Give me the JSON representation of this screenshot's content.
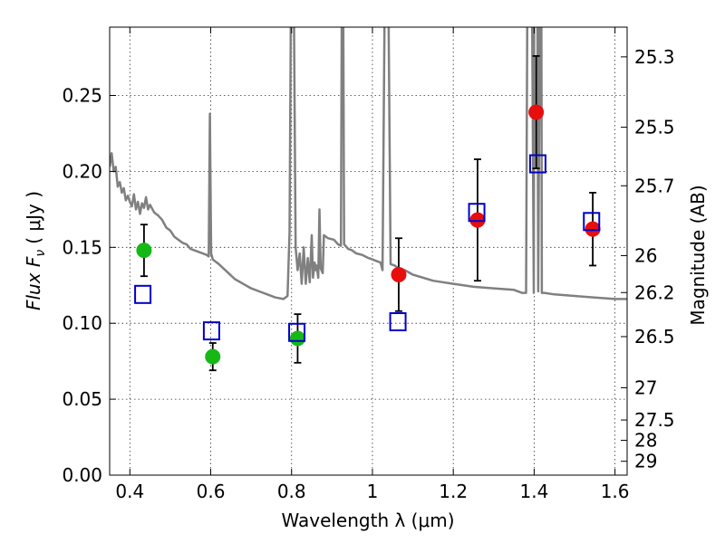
{
  "chart_data": {
    "type": "scatter",
    "xlabel": "Wavelength  λ (μm)",
    "ylabel": "Flux  F",
    "ylabel_sub": "ν",
    "ylabel_unit": "( μJy )",
    "y2label": "Magnitude (AB)",
    "xlim": [
      0.35,
      1.63
    ],
    "ylim": [
      0.0,
      0.295
    ],
    "grid": true,
    "x_ticks": [
      {
        "value": 0.4,
        "label": "0.4"
      },
      {
        "value": 0.6,
        "label": "0.6"
      },
      {
        "value": 0.8,
        "label": "0.8"
      },
      {
        "value": 1.0,
        "label": "1"
      },
      {
        "value": 1.2,
        "label": "1.2"
      },
      {
        "value": 1.4,
        "label": "1.4"
      },
      {
        "value": 1.6,
        "label": "1.6"
      }
    ],
    "y_ticks": [
      {
        "value": 0.0,
        "label": "0.00"
      },
      {
        "value": 0.05,
        "label": "0.05"
      },
      {
        "value": 0.1,
        "label": "0.10"
      },
      {
        "value": 0.15,
        "label": "0.15"
      },
      {
        "value": 0.2,
        "label": "0.20"
      },
      {
        "value": 0.25,
        "label": "0.25"
      }
    ],
    "y2_ticks": [
      {
        "mag": 25.3,
        "label": "25.3"
      },
      {
        "mag": 25.5,
        "label": "25.5"
      },
      {
        "mag": 25.7,
        "label": "25.7"
      },
      {
        "mag": 26.0,
        "label": "26"
      },
      {
        "mag": 26.2,
        "label": "26.2"
      },
      {
        "mag": 26.5,
        "label": "26.5"
      },
      {
        "mag": 27.0,
        "label": "27"
      },
      {
        "mag": 27.5,
        "label": "27.5"
      },
      {
        "mag": 28.0,
        "label": "28"
      },
      {
        "mag": 29.0,
        "label": "29"
      }
    ],
    "colors": {
      "model": "#808080",
      "green": "#16b816",
      "red": "#e80e0e",
      "square": "#0000cc",
      "errorbar": "#000000"
    },
    "series": [
      {
        "name": "model-spectrum",
        "type": "line",
        "points": [
          [
            0.35,
            0.203
          ],
          [
            0.355,
            0.212
          ],
          [
            0.36,
            0.2
          ],
          [
            0.365,
            0.203
          ],
          [
            0.37,
            0.19
          ],
          [
            0.375,
            0.193
          ],
          [
            0.38,
            0.186
          ],
          [
            0.385,
            0.189
          ],
          [
            0.39,
            0.181
          ],
          [
            0.395,
            0.184
          ],
          [
            0.4,
            0.18
          ],
          [
            0.405,
            0.177
          ],
          [
            0.41,
            0.185
          ],
          [
            0.415,
            0.175
          ],
          [
            0.42,
            0.18
          ],
          [
            0.425,
            0.172
          ],
          [
            0.43,
            0.179
          ],
          [
            0.435,
            0.176
          ],
          [
            0.44,
            0.183
          ],
          [
            0.445,
            0.175
          ],
          [
            0.45,
            0.178
          ],
          [
            0.46,
            0.173
          ],
          [
            0.47,
            0.171
          ],
          [
            0.48,
            0.168
          ],
          [
            0.49,
            0.163
          ],
          [
            0.5,
            0.161
          ],
          [
            0.51,
            0.157
          ],
          [
            0.52,
            0.155
          ],
          [
            0.53,
            0.153
          ],
          [
            0.54,
            0.152
          ],
          [
            0.55,
            0.149
          ],
          [
            0.56,
            0.148
          ],
          [
            0.57,
            0.147
          ],
          [
            0.58,
            0.146
          ],
          [
            0.59,
            0.145
          ],
          [
            0.595,
            0.144
          ],
          [
            0.598,
            0.238
          ],
          [
            0.601,
            0.146
          ],
          [
            0.605,
            0.142
          ],
          [
            0.62,
            0.139
          ],
          [
            0.64,
            0.134
          ],
          [
            0.66,
            0.129
          ],
          [
            0.68,
            0.126
          ],
          [
            0.7,
            0.123
          ],
          [
            0.72,
            0.121
          ],
          [
            0.74,
            0.119
          ],
          [
            0.76,
            0.117
          ],
          [
            0.78,
            0.116
          ],
          [
            0.79,
            0.118
          ],
          [
            0.795,
            0.16
          ],
          [
            0.798,
            0.3
          ],
          [
            0.806,
            0.3
          ],
          [
            0.81,
            0.15
          ],
          [
            0.815,
            0.135
          ],
          [
            0.82,
            0.146
          ],
          [
            0.825,
            0.126
          ],
          [
            0.83,
            0.15
          ],
          [
            0.835,
            0.126
          ],
          [
            0.84,
            0.143
          ],
          [
            0.845,
            0.127
          ],
          [
            0.85,
            0.158
          ],
          [
            0.853,
            0.13
          ],
          [
            0.857,
            0.14
          ],
          [
            0.86,
            0.135
          ],
          [
            0.862,
            0.138
          ],
          [
            0.866,
            0.13
          ],
          [
            0.869,
            0.175
          ],
          [
            0.872,
            0.136
          ],
          [
            0.877,
            0.133
          ],
          [
            0.88,
            0.158
          ],
          [
            0.89,
            0.156
          ],
          [
            0.905,
            0.155
          ],
          [
            0.915,
            0.152
          ],
          [
            0.922,
            0.151
          ],
          [
            0.924,
            0.3
          ],
          [
            0.928,
            0.3
          ],
          [
            0.93,
            0.152
          ],
          [
            0.94,
            0.149
          ],
          [
            0.95,
            0.148
          ],
          [
            0.96,
            0.146
          ],
          [
            0.975,
            0.145
          ],
          [
            0.99,
            0.143
          ],
          [
            1.0,
            0.142
          ],
          [
            1.01,
            0.141
          ],
          [
            1.02,
            0.14
          ],
          [
            1.025,
            0.135
          ],
          [
            1.03,
            0.3
          ],
          [
            1.04,
            0.3
          ],
          [
            1.045,
            0.139
          ],
          [
            1.055,
            0.138
          ],
          [
            1.065,
            0.136
          ],
          [
            1.08,
            0.135
          ],
          [
            1.1,
            0.132
          ],
          [
            1.15,
            0.128
          ],
          [
            1.2,
            0.126
          ],
          [
            1.25,
            0.124
          ],
          [
            1.3,
            0.123
          ],
          [
            1.35,
            0.122
          ],
          [
            1.37,
            0.12
          ],
          [
            1.38,
            0.12
          ],
          [
            1.383,
            0.3
          ],
          [
            1.395,
            0.3
          ],
          [
            1.399,
            0.12
          ],
          [
            1.4,
            0.3
          ],
          [
            1.408,
            0.3
          ],
          [
            1.41,
            0.121
          ],
          [
            1.414,
            0.3
          ],
          [
            1.418,
            0.3
          ],
          [
            1.419,
            0.12
          ],
          [
            1.425,
            0.12
          ],
          [
            1.45,
            0.119
          ],
          [
            1.5,
            0.118
          ],
          [
            1.55,
            0.117
          ],
          [
            1.6,
            0.116
          ],
          [
            1.63,
            0.116
          ]
        ]
      },
      {
        "name": "observed-optical",
        "type": "points",
        "marker": "circle",
        "color": "green",
        "points": [
          {
            "x": 0.435,
            "y": 0.148,
            "err": 0.017
          },
          {
            "x": 0.605,
            "y": 0.078,
            "err": 0.009
          },
          {
            "x": 0.815,
            "y": 0.09,
            "err": 0.016
          }
        ]
      },
      {
        "name": "observed-infrared",
        "type": "points",
        "marker": "circle",
        "color": "red",
        "points": [
          {
            "x": 1.065,
            "y": 0.132,
            "err": 0.024
          },
          {
            "x": 1.26,
            "y": 0.168,
            "err": 0.04
          },
          {
            "x": 1.405,
            "y": 0.239,
            "err": 0.037
          },
          {
            "x": 1.545,
            "y": 0.162,
            "err": 0.024
          }
        ]
      },
      {
        "name": "model-photometry",
        "type": "points",
        "marker": "square",
        "color": "square",
        "points": [
          {
            "x": 0.432,
            "y": 0.119
          },
          {
            "x": 0.602,
            "y": 0.095
          },
          {
            "x": 0.813,
            "y": 0.094
          },
          {
            "x": 1.063,
            "y": 0.101
          },
          {
            "x": 1.258,
            "y": 0.173
          },
          {
            "x": 1.409,
            "y": 0.205
          },
          {
            "x": 1.542,
            "y": 0.167
          }
        ]
      }
    ]
  }
}
